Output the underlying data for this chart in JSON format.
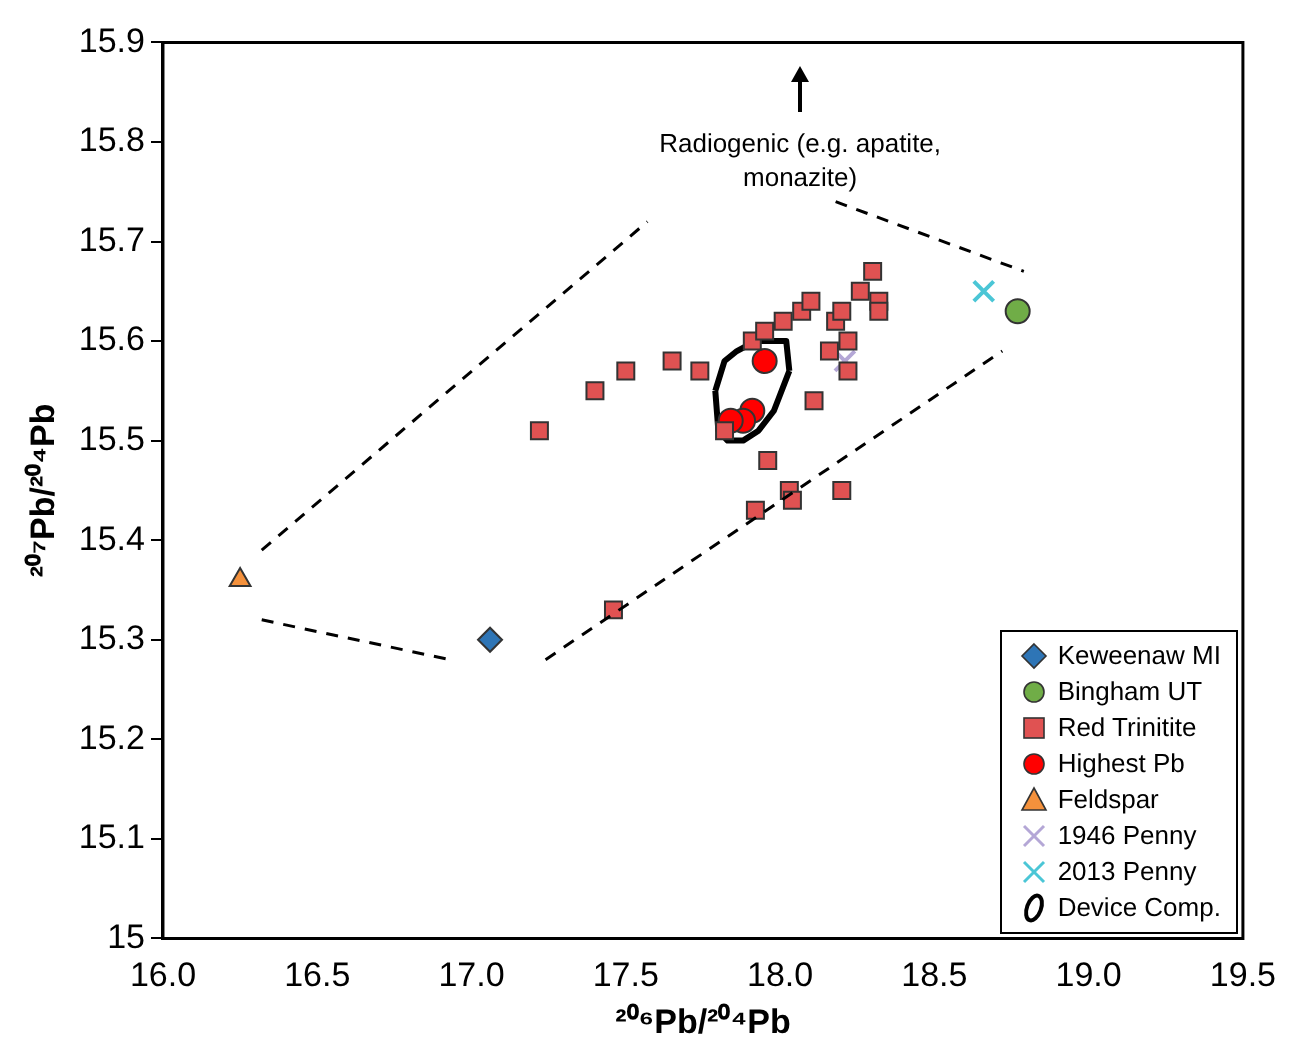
{
  "chart_data": {
    "type": "scatter",
    "xlabel": "²⁰⁶Pb/²⁰⁴Pb",
    "ylabel": "²⁰⁷Pb/²⁰⁴Pb",
    "xlim": [
      16,
      19.5
    ],
    "xticks": [
      {
        "value": 16,
        "label": "16.0"
      },
      16.5,
      {
        "value": 17,
        "label": "17.0"
      },
      17.5,
      {
        "value": 18,
        "label": "18.0"
      },
      18.5,
      {
        "value": 19,
        "label": "19.0"
      },
      19.5
    ],
    "ylim": [
      15,
      15.9
    ],
    "yticks": [
      15,
      15.1,
      15.2,
      15.3,
      15.4,
      15.5,
      15.6,
      15.7,
      15.8,
      15.9
    ],
    "grid": false,
    "legend": "bottom right",
    "annotations": [
      "Radiogenic (e.g. apatite, monazite)"
    ],
    "series": [
      {
        "type": "line",
        "color": "#000000",
        "line_style": "dashed",
        "marker": "none",
        "x": [
          16.32,
          17.57
        ],
        "values": [
          15.39,
          15.72
        ]
      },
      {
        "type": "line",
        "color": "#000000",
        "line_style": "dashed",
        "marker": "none",
        "x": [
          18.18,
          18.79
        ],
        "values": [
          15.74,
          15.67
        ]
      },
      {
        "type": "line",
        "color": "#000000",
        "line_style": "dashed",
        "marker": "none",
        "x": [
          16.32,
          16.93
        ],
        "values": [
          15.32,
          15.28
        ]
      },
      {
        "type": "line",
        "color": "#000000",
        "line_style": "dashed",
        "marker": "none",
        "x": [
          17.24,
          18.72
        ],
        "values": [
          15.28,
          15.59
        ]
      },
      {
        "name": "Keweenaw MI",
        "color": "#2e75b6",
        "marker": "diamond",
        "x": [
          17.06
        ],
        "values": [
          15.3
        ]
      },
      {
        "name": "Bingham UT",
        "color": "#70ad47",
        "marker": "circle",
        "x": [
          18.77
        ],
        "values": [
          15.63
        ]
      },
      {
        "name": "Red Trinitite",
        "color": "#e05252",
        "marker": "square",
        "x": [
          17.22,
          17.4,
          17.5,
          17.65,
          17.74,
          17.91,
          17.95,
          18.01,
          18.07,
          18.1,
          18.18,
          18.2,
          18.26,
          18.3,
          18.32,
          18.32,
          18.16,
          18.22,
          18.22,
          18.11,
          17.82,
          17.96,
          18.03,
          18.04,
          18.2,
          17.92,
          17.46
        ],
        "values": [
          15.51,
          15.55,
          15.57,
          15.58,
          15.57,
          15.6,
          15.61,
          15.62,
          15.63,
          15.64,
          15.62,
          15.63,
          15.65,
          15.67,
          15.64,
          15.63,
          15.59,
          15.6,
          15.57,
          15.54,
          15.51,
          15.48,
          15.45,
          15.44,
          15.45,
          15.43,
          15.33
        ]
      },
      {
        "name": "Highest Pb",
        "color": "#ff0000",
        "marker": "circle",
        "x": [
          17.95,
          17.91,
          17.88,
          17.84
        ],
        "values": [
          15.58,
          15.53,
          15.52,
          15.52
        ]
      },
      {
        "name": "Feldspar",
        "color": "#f4913c",
        "marker": "triangle",
        "x": [
          16.25
        ],
        "values": [
          15.36
        ]
      },
      {
        "name": "1946 Penny",
        "color": "#b4a7d6",
        "marker": "cross",
        "x": [
          18.21
        ],
        "values": [
          15.58
        ]
      },
      {
        "name": "2013 Penny",
        "color": "#4bc6d6",
        "marker": "cross",
        "x": [
          18.66
        ],
        "values": [
          15.65
        ]
      },
      {
        "name": "Device Comp.",
        "type": "line",
        "color": "#000000",
        "line_style": "solid",
        "marker": "none",
        "x": [
          17.79,
          17.82,
          17.86,
          17.92,
          17.98,
          18.02,
          18.03,
          17.79,
          17.8,
          17.83,
          17.88,
          17.93,
          17.98,
          18.03
        ],
        "values": [
          15.55,
          15.58,
          15.59,
          15.6,
          15.6,
          15.6,
          15.57,
          15.55,
          15.51,
          15.5,
          15.5,
          15.51,
          15.53,
          15.57
        ]
      }
    ]
  }
}
